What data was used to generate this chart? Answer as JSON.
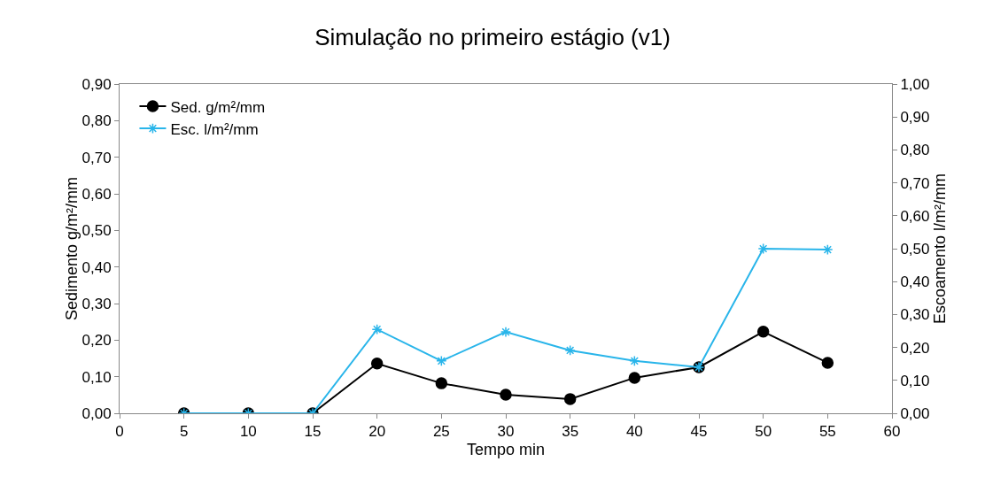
{
  "chart_data": {
    "type": "line",
    "title": "Simulação no primeiro estágio (v1)",
    "xlabel": "Tempo min",
    "ylabel": "Sedimento g/m²/mm",
    "y2label": "Escoamento l/m²/mm",
    "x": [
      5,
      10,
      15,
      20,
      25,
      30,
      35,
      40,
      45,
      50,
      55
    ],
    "series": [
      {
        "name": "Sed. g/m²/mm",
        "color": "#000000",
        "marker": "circle",
        "values": [
          0,
          0,
          0,
          0.136,
          0.082,
          0.051,
          0.039,
          0.097,
          0.126,
          0.223,
          0.138
        ]
      },
      {
        "name": "Esc. l/m²/mm",
        "color": "#29b5ea",
        "marker": "cross",
        "axis": "y2",
        "values": [
          0,
          0,
          0,
          0.255,
          0.159,
          0.247,
          0.191,
          0.159,
          0.14,
          0.5,
          0.497
        ]
      }
    ],
    "xlim": [
      0,
      60
    ],
    "xticks": [
      0,
      5,
      10,
      15,
      20,
      25,
      30,
      35,
      40,
      45,
      50,
      55,
      60
    ],
    "ylim": [
      0,
      0.9
    ],
    "yticks": [
      {
        "value": 0,
        "label": "0,00"
      },
      {
        "value": 0.1,
        "label": "0,10"
      },
      {
        "value": 0.2,
        "label": "0,20"
      },
      {
        "value": 0.3,
        "label": "0,30"
      },
      {
        "value": 0.4,
        "label": "0,40"
      },
      {
        "value": 0.5,
        "label": "0,50"
      },
      {
        "value": 0.6,
        "label": "0,60"
      },
      {
        "value": 0.7,
        "label": "0,70"
      },
      {
        "value": 0.8,
        "label": "0,80"
      },
      {
        "value": 0.9,
        "label": "0,90"
      }
    ],
    "y2lim": [
      0,
      1
    ],
    "y2ticks": [
      {
        "value": 0,
        "label": "0,00"
      },
      {
        "value": 0.1,
        "label": "0,10"
      },
      {
        "value": 0.2,
        "label": "0,20"
      },
      {
        "value": 0.3,
        "label": "0,30"
      },
      {
        "value": 0.4,
        "label": "0,40"
      },
      {
        "value": 0.5,
        "label": "0,50"
      },
      {
        "value": 0.6,
        "label": "0,60"
      },
      {
        "value": 0.7,
        "label": "0,70"
      },
      {
        "value": 0.8,
        "label": "0,80"
      },
      {
        "value": 0.9,
        "label": "0,90"
      },
      {
        "value": 1,
        "label": "1,00"
      }
    ],
    "grid": false,
    "legend": "top left",
    "line_style": "solid"
  }
}
